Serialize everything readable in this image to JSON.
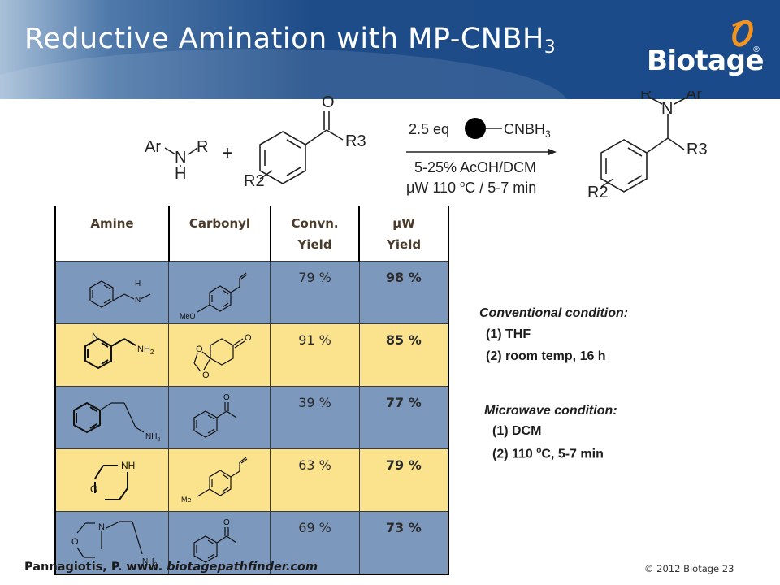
{
  "header": {
    "title": "Reductive Amination with MP-CNBH",
    "title_sub": "3",
    "logo_text": "Biotage",
    "logo_reg": "®"
  },
  "scheme": {
    "amine_ar": "Ar",
    "amine_n": "N",
    "amine_r": "R",
    "amine_h": "H",
    "plus": "+",
    "carbonyl_o": "O",
    "carbonyl_r3": "R3",
    "carbonyl_r2": "R2",
    "reagent_eq": "2.5 eq",
    "reagent_name": "CNBH",
    "reagent_sub": "3",
    "cond_1": "5-25% AcOH/DCM",
    "cond_2_a": "μW 110 ",
    "cond_2_deg": "o",
    "cond_2_b": "C / 5-7 min",
    "product_r": "R",
    "product_n": "N",
    "product_ar": "Ar",
    "product_r3": "R3",
    "product_r2": "R2"
  },
  "table": {
    "headers": [
      "Amine",
      "Carbonyl",
      "Convn.",
      "Yield",
      "μW",
      "Yield"
    ],
    "rows": [
      {
        "conv_yield": "79 %",
        "mw_yield": "98 %",
        "carbonyl_label": "MeO"
      },
      {
        "conv_yield": "91 %",
        "mw_yield": "85 %"
      },
      {
        "conv_yield": "39 %",
        "mw_yield": "77 %"
      },
      {
        "conv_yield": "63 %",
        "mw_yield": "79 %",
        "carbonyl_label": "Me"
      },
      {
        "conv_yield": "69 %",
        "mw_yield": "73 %"
      }
    ],
    "atom_labels": {
      "h": "H",
      "n": "N",
      "nh": "NH",
      "nh2": "NH",
      "sub2": "2",
      "o": "O"
    }
  },
  "conventional": {
    "title": "Conventional condition:",
    "item1": "(1) THF",
    "item2": "(2)  room temp, 16 h"
  },
  "microwave": {
    "title": "Microwave condition:",
    "item1": "(1) DCM",
    "item2_a": "(2)  110 ",
    "item2_deg": "o",
    "item2_b": "C, 5-7 min"
  },
  "footer": {
    "citation_prefix": "Pannagiotis, P. www. ",
    "citation_site": "biotagepathfinder.com",
    "copyright": "© 2012 Biotage  23"
  },
  "colors": {
    "header_blue": "#1a4a8a",
    "row_blue": "#7d98bd",
    "row_yellow": "#fbe38d",
    "logo_orange": "#f29422"
  }
}
